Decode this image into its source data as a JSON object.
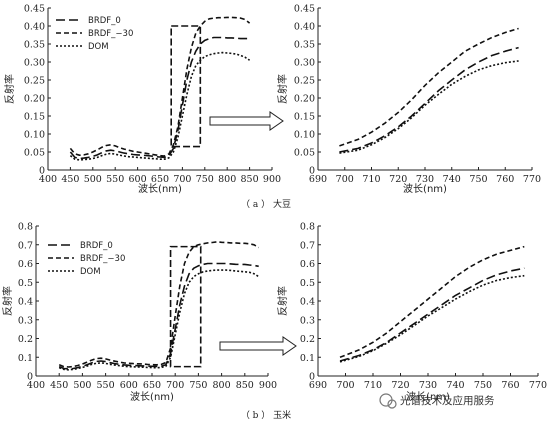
{
  "captions": {
    "a": "（ a ） 大豆",
    "b": "（ b ） 玉米"
  },
  "watermark": "光谱技术及应用服务",
  "chart_data": [
    {
      "id": "soybean-full",
      "type": "line",
      "xlabel": "波长(nm)",
      "ylabel": "反射率",
      "xlim": [
        400,
        900
      ],
      "ylim": [
        0,
        0.45
      ],
      "xticks": [
        400,
        450,
        500,
        550,
        600,
        650,
        700,
        750,
        800,
        850,
        900
      ],
      "yticks": [
        0,
        0.05,
        0.1,
        0.15,
        0.2,
        0.25,
        0.3,
        0.35,
        0.4,
        0.45
      ],
      "ytick_labels": [
        "0",
        "0.05",
        "0.10",
        "0.15",
        "0.20",
        "0.25",
        "0.30",
        "0.35",
        "0.40",
        "0.45"
      ],
      "legend": "top-left",
      "box_region": {
        "x": [
          675,
          740
        ],
        "y": [
          0.065,
          0.4
        ]
      },
      "series": [
        {
          "name": "BRDF_0",
          "dash": "9,4",
          "x": [
            450,
            460,
            470,
            480,
            490,
            500,
            510,
            520,
            530,
            540,
            550,
            560,
            570,
            580,
            590,
            600,
            610,
            620,
            630,
            640,
            650,
            660,
            670,
            680,
            690,
            700,
            710,
            720,
            730,
            740,
            750,
            760,
            770,
            780,
            790,
            800,
            810,
            820,
            830,
            840,
            850
          ],
          "y": [
            0.05,
            0.035,
            0.032,
            0.033,
            0.035,
            0.038,
            0.042,
            0.048,
            0.053,
            0.055,
            0.053,
            0.05,
            0.047,
            0.045,
            0.043,
            0.042,
            0.041,
            0.04,
            0.039,
            0.037,
            0.036,
            0.035,
            0.04,
            0.06,
            0.11,
            0.18,
            0.25,
            0.3,
            0.33,
            0.35,
            0.36,
            0.365,
            0.368,
            0.368,
            0.368,
            0.367,
            0.367,
            0.366,
            0.365,
            0.365,
            0.365
          ]
        },
        {
          "name": "BRDF_−30",
          "dash": "5,3",
          "x": [
            450,
            460,
            470,
            480,
            490,
            500,
            510,
            520,
            530,
            540,
            550,
            560,
            570,
            580,
            590,
            600,
            610,
            620,
            630,
            640,
            650,
            660,
            670,
            680,
            690,
            700,
            710,
            720,
            730,
            740,
            750,
            760,
            770,
            780,
            790,
            800,
            810,
            820,
            830,
            840,
            850
          ],
          "y": [
            0.06,
            0.045,
            0.041,
            0.042,
            0.045,
            0.05,
            0.056,
            0.063,
            0.068,
            0.07,
            0.067,
            0.062,
            0.058,
            0.055,
            0.052,
            0.05,
            0.048,
            0.046,
            0.044,
            0.042,
            0.04,
            0.039,
            0.045,
            0.07,
            0.12,
            0.2,
            0.28,
            0.34,
            0.38,
            0.4,
            0.413,
            0.42,
            0.422,
            0.423,
            0.423,
            0.424,
            0.424,
            0.423,
            0.422,
            0.418,
            0.408
          ]
        },
        {
          "name": "DOM",
          "dash": "2,2",
          "x": [
            450,
            460,
            470,
            480,
            490,
            500,
            510,
            520,
            530,
            540,
            550,
            560,
            570,
            580,
            590,
            600,
            610,
            620,
            630,
            640,
            650,
            660,
            670,
            680,
            690,
            700,
            710,
            720,
            730,
            740,
            750,
            760,
            770,
            780,
            790,
            800,
            810,
            820,
            830,
            840,
            850
          ],
          "y": [
            0.04,
            0.03,
            0.028,
            0.029,
            0.03,
            0.032,
            0.035,
            0.04,
            0.044,
            0.046,
            0.044,
            0.041,
            0.039,
            0.037,
            0.036,
            0.035,
            0.034,
            0.033,
            0.032,
            0.031,
            0.03,
            0.03,
            0.034,
            0.05,
            0.09,
            0.15,
            0.21,
            0.26,
            0.29,
            0.305,
            0.315,
            0.32,
            0.323,
            0.325,
            0.326,
            0.325,
            0.324,
            0.322,
            0.318,
            0.313,
            0.305
          ]
        }
      ]
    },
    {
      "id": "soybean-zoom",
      "type": "line",
      "xlabel": "波长(nm)",
      "ylabel": "反射率",
      "xlim": [
        690,
        770
      ],
      "ylim": [
        0,
        0.45
      ],
      "xticks": [
        690,
        700,
        710,
        720,
        730,
        740,
        750,
        760,
        770
      ],
      "yticks": [
        0,
        0.05,
        0.1,
        0.15,
        0.2,
        0.25,
        0.3,
        0.35,
        0.4,
        0.45
      ],
      "ytick_labels": [
        "0",
        "0.05",
        "0.10",
        "0.15",
        "0.20",
        "0.25",
        "0.30",
        "0.35",
        "0.40",
        "0.45"
      ],
      "series": [
        {
          "name": "BRDF_0",
          "dash": "9,4",
          "x": [
            698,
            705,
            710,
            715,
            720,
            725,
            730,
            735,
            740,
            745,
            750,
            755,
            760,
            765
          ],
          "y": [
            0.05,
            0.06,
            0.075,
            0.095,
            0.12,
            0.15,
            0.185,
            0.22,
            0.25,
            0.278,
            0.3,
            0.318,
            0.33,
            0.34
          ]
        },
        {
          "name": "BRDF_−30",
          "dash": "5,3",
          "x": [
            698,
            705,
            710,
            715,
            720,
            725,
            730,
            735,
            740,
            745,
            750,
            755,
            760,
            765
          ],
          "y": [
            0.067,
            0.085,
            0.105,
            0.13,
            0.16,
            0.195,
            0.235,
            0.27,
            0.3,
            0.33,
            0.35,
            0.368,
            0.382,
            0.393
          ]
        },
        {
          "name": "DOM",
          "dash": "2,2",
          "x": [
            698,
            705,
            710,
            715,
            720,
            725,
            730,
            735,
            740,
            745,
            750,
            755,
            760,
            765
          ],
          "y": [
            0.047,
            0.055,
            0.07,
            0.09,
            0.115,
            0.145,
            0.18,
            0.21,
            0.238,
            0.26,
            0.278,
            0.29,
            0.298,
            0.303
          ]
        }
      ]
    },
    {
      "id": "maize-full",
      "type": "line",
      "xlabel": "波长(nm)",
      "ylabel": "反射率",
      "xlim": [
        400,
        900
      ],
      "ylim": [
        0,
        0.8
      ],
      "xticks": [
        400,
        450,
        500,
        550,
        600,
        650,
        700,
        750,
        800,
        850,
        900
      ],
      "yticks": [
        0,
        0.1,
        0.2,
        0.3,
        0.4,
        0.5,
        0.6,
        0.7,
        0.8
      ],
      "ytick_labels": [
        "0",
        "0.1",
        "0.2",
        "0.3",
        "0.4",
        "0.5",
        "0.6",
        "0.7",
        "0.8"
      ],
      "legend": "top-left",
      "box_region": {
        "x": [
          690,
          755
        ],
        "y": [
          0.05,
          0.69
        ]
      },
      "series": [
        {
          "name": "BRDF_0",
          "dash": "9,4",
          "x": [
            450,
            460,
            470,
            480,
            490,
            500,
            510,
            520,
            530,
            540,
            550,
            560,
            570,
            580,
            590,
            600,
            610,
            620,
            630,
            640,
            650,
            660,
            670,
            680,
            690,
            700,
            710,
            720,
            730,
            740,
            750,
            760,
            770,
            780,
            790,
            800,
            810,
            820,
            830,
            840,
            850,
            860,
            870,
            880
          ],
          "y": [
            0.05,
            0.04,
            0.038,
            0.04,
            0.045,
            0.052,
            0.06,
            0.07,
            0.078,
            0.08,
            0.077,
            0.071,
            0.066,
            0.062,
            0.059,
            0.057,
            0.056,
            0.055,
            0.054,
            0.053,
            0.052,
            0.051,
            0.052,
            0.06,
            0.12,
            0.25,
            0.38,
            0.48,
            0.545,
            0.575,
            0.588,
            0.595,
            0.6,
            0.6,
            0.6,
            0.6,
            0.6,
            0.598,
            0.596,
            0.595,
            0.595,
            0.592,
            0.59,
            0.585
          ]
        },
        {
          "name": "BRDF_−30",
          "dash": "5,3",
          "x": [
            450,
            460,
            470,
            480,
            490,
            500,
            510,
            520,
            530,
            540,
            550,
            560,
            570,
            580,
            590,
            600,
            610,
            620,
            630,
            640,
            650,
            660,
            670,
            680,
            690,
            700,
            710,
            720,
            730,
            740,
            750,
            760,
            770,
            780,
            790,
            800,
            810,
            820,
            830,
            840,
            850,
            860,
            870,
            880
          ],
          "y": [
            0.06,
            0.05,
            0.048,
            0.05,
            0.056,
            0.064,
            0.074,
            0.085,
            0.093,
            0.095,
            0.091,
            0.085,
            0.079,
            0.074,
            0.07,
            0.068,
            0.066,
            0.065,
            0.064,
            0.062,
            0.061,
            0.06,
            0.062,
            0.072,
            0.15,
            0.32,
            0.48,
            0.6,
            0.66,
            0.69,
            0.7,
            0.705,
            0.71,
            0.712,
            0.715,
            0.713,
            0.712,
            0.71,
            0.71,
            0.708,
            0.708,
            0.705,
            0.7,
            0.685
          ]
        },
        {
          "name": "DOM",
          "dash": "2,2",
          "x": [
            450,
            460,
            470,
            480,
            490,
            500,
            510,
            520,
            530,
            540,
            550,
            560,
            570,
            580,
            590,
            600,
            610,
            620,
            630,
            640,
            650,
            660,
            670,
            680,
            690,
            700,
            710,
            720,
            730,
            740,
            750,
            760,
            770,
            780,
            790,
            800,
            810,
            820,
            830,
            840,
            850,
            860,
            870,
            880
          ],
          "y": [
            0.045,
            0.035,
            0.033,
            0.035,
            0.04,
            0.046,
            0.053,
            0.062,
            0.068,
            0.07,
            0.067,
            0.062,
            0.058,
            0.055,
            0.052,
            0.05,
            0.049,
            0.048,
            0.047,
            0.046,
            0.045,
            0.044,
            0.046,
            0.052,
            0.1,
            0.22,
            0.34,
            0.44,
            0.5,
            0.53,
            0.545,
            0.555,
            0.56,
            0.563,
            0.565,
            0.565,
            0.565,
            0.563,
            0.56,
            0.558,
            0.556,
            0.553,
            0.545,
            0.53
          ]
        }
      ]
    },
    {
      "id": "maize-zoom",
      "type": "line",
      "xlabel": "波长(nm)",
      "ylabel": "反射率",
      "xlim": [
        690,
        770
      ],
      "ylim": [
        0,
        0.8
      ],
      "xticks": [
        690,
        700,
        710,
        720,
        730,
        740,
        750,
        760,
        770
      ],
      "yticks": [
        0,
        0.1,
        0.2,
        0.3,
        0.4,
        0.5,
        0.6,
        0.7,
        0.8
      ],
      "ytick_labels": [
        "0",
        "0.1",
        "0.2",
        "0.3",
        "0.4",
        "0.5",
        "0.6",
        "0.7",
        "0.8"
      ],
      "series": [
        {
          "name": "BRDF_0",
          "dash": "9,4",
          "x": [
            698,
            705,
            710,
            715,
            720,
            725,
            730,
            735,
            740,
            745,
            750,
            755,
            760,
            765
          ],
          "y": [
            0.08,
            0.11,
            0.14,
            0.18,
            0.23,
            0.28,
            0.33,
            0.38,
            0.43,
            0.47,
            0.51,
            0.54,
            0.56,
            0.575
          ]
        },
        {
          "name": "BRDF_−30",
          "dash": "5,3",
          "x": [
            698,
            705,
            710,
            715,
            720,
            725,
            730,
            735,
            740,
            745,
            750,
            755,
            760,
            765
          ],
          "y": [
            0.1,
            0.14,
            0.18,
            0.23,
            0.29,
            0.35,
            0.41,
            0.47,
            0.53,
            0.58,
            0.62,
            0.65,
            0.67,
            0.69
          ]
        },
        {
          "name": "DOM",
          "dash": "2,2",
          "x": [
            698,
            705,
            710,
            715,
            720,
            725,
            730,
            735,
            740,
            745,
            750,
            755,
            760,
            765
          ],
          "y": [
            0.075,
            0.105,
            0.135,
            0.175,
            0.22,
            0.27,
            0.32,
            0.365,
            0.41,
            0.45,
            0.485,
            0.51,
            0.525,
            0.535
          ]
        }
      ]
    }
  ]
}
